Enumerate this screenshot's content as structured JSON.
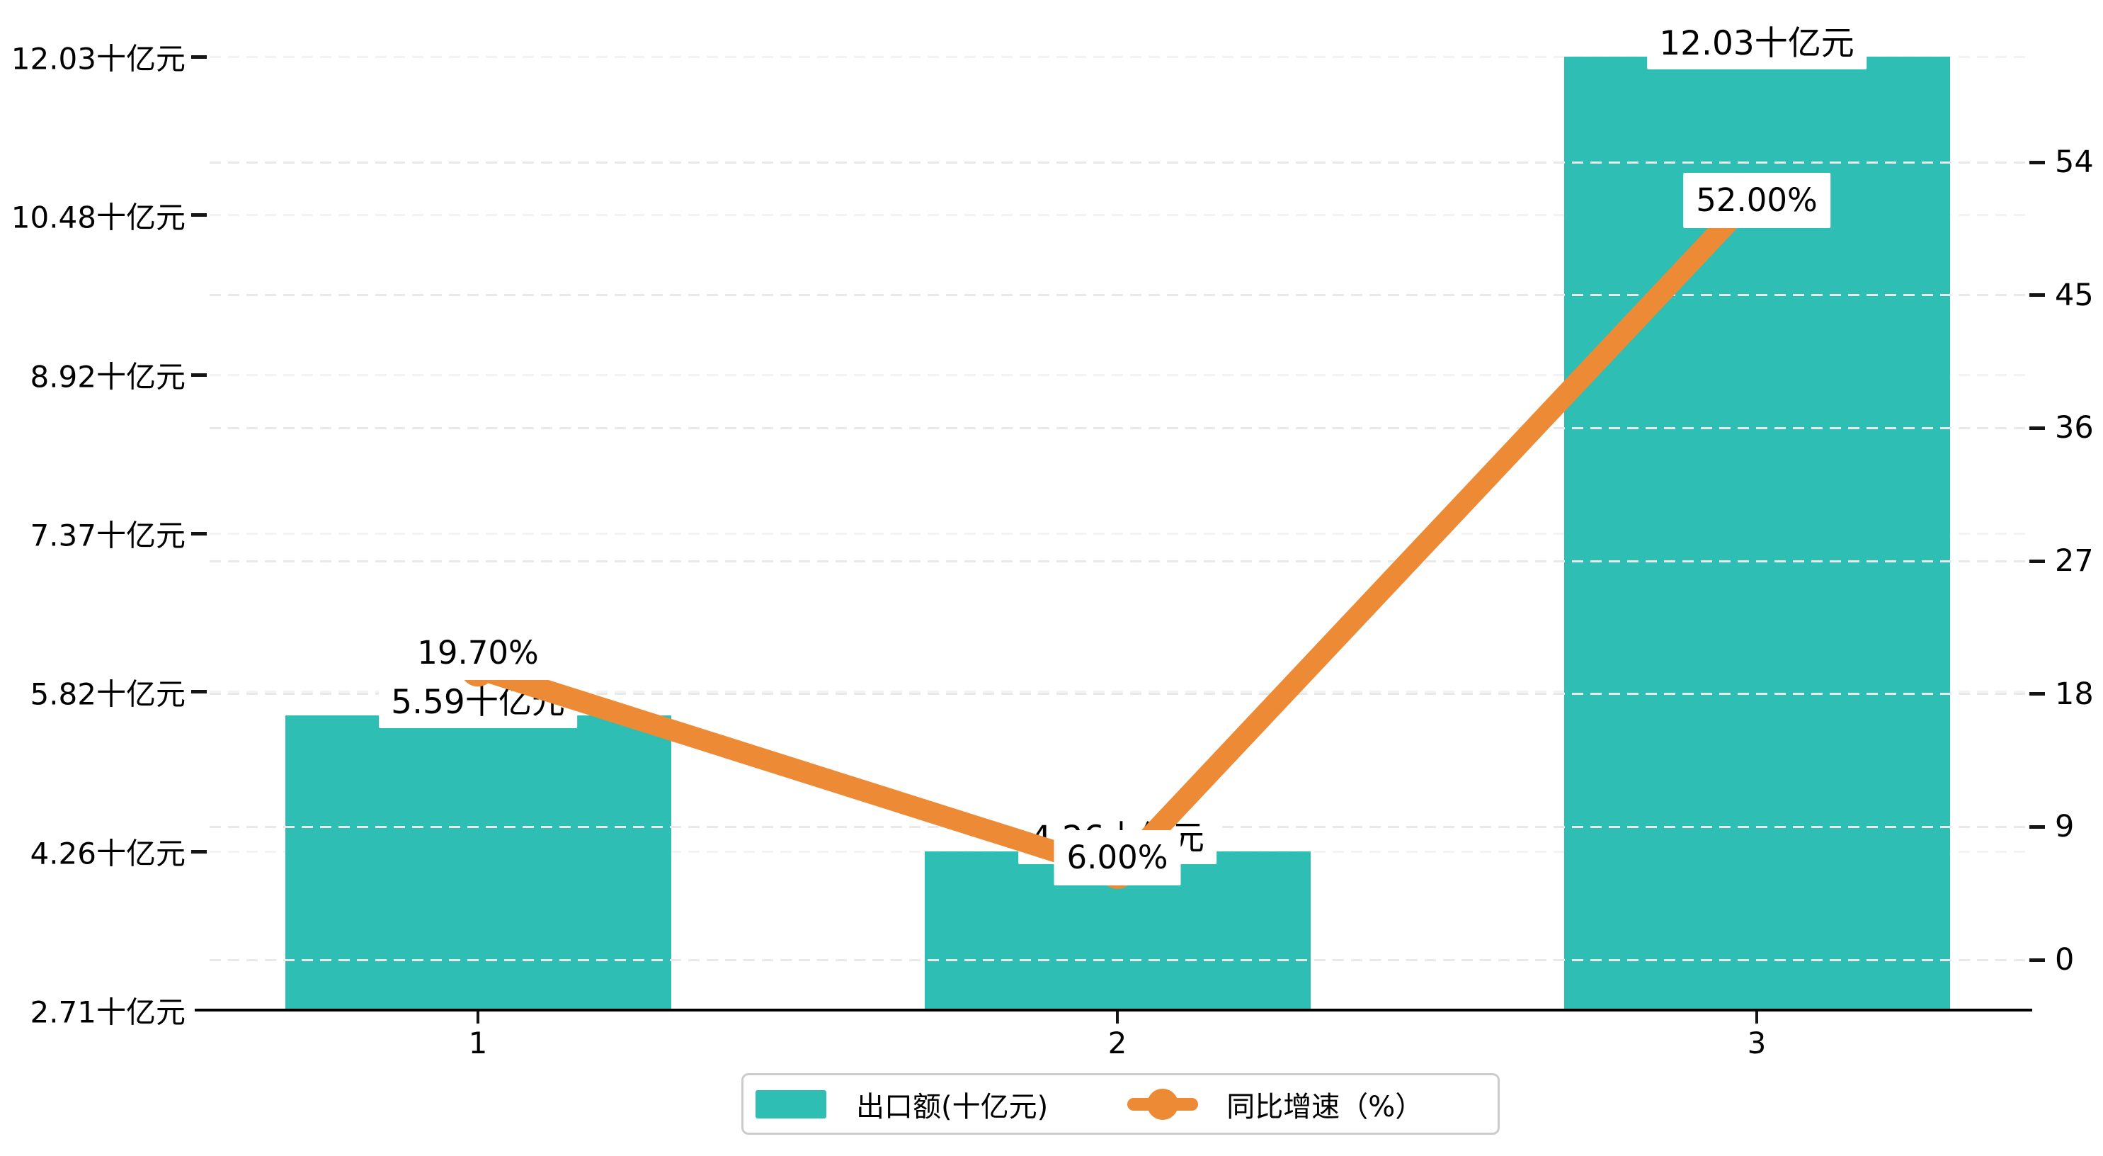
{
  "chart_data": {
    "type": "combo",
    "categories": [
      "1",
      "2",
      "3"
    ],
    "series": [
      {
        "name": "出口额(十亿元)",
        "type": "bar",
        "axis": "left",
        "color": "#2FBEB3",
        "values": [
          5.59,
          4.26,
          12.03
        ],
        "data_labels": [
          "5.59十亿元",
          "4.26十亿元",
          "12.03十亿元"
        ]
      },
      {
        "name": "同比增速（%）",
        "type": "line",
        "axis": "right",
        "color": "#ED8A35",
        "values": [
          19.7,
          6.0,
          52.0
        ],
        "data_labels": [
          "19.70%",
          "6.00%",
          "52.00%"
        ]
      }
    ],
    "left_axis": {
      "min": 2.71,
      "max": 12.03,
      "ticks": [
        2.71,
        4.26,
        5.82,
        7.37,
        8.92,
        10.48,
        12.03
      ],
      "tick_labels": [
        "2.71十亿元",
        "4.26十亿元",
        "5.82十亿元",
        "7.37十亿元",
        "8.92十亿元",
        "10.48十亿元",
        "12.03十亿元"
      ]
    },
    "right_axis": {
      "ticks": [
        0,
        9,
        18,
        27,
        36,
        45,
        54
      ],
      "tick_labels": [
        "0",
        "9",
        "18",
        "27",
        "36",
        "45",
        "54"
      ]
    },
    "x_axis": {
      "tick_labels": [
        "1",
        "2",
        "3"
      ]
    },
    "grid": {
      "dashed": true
    },
    "legend_position": "bottom"
  },
  "legend": {
    "items": [
      {
        "label": "出口额(十亿元)",
        "marker": "bar-swatch",
        "color": "#2FBEB3"
      },
      {
        "label": "同比增速（%）",
        "marker": "line-dot",
        "color": "#ED8A35"
      }
    ]
  },
  "colors": {
    "bar": "#2FBEB3",
    "line": "#ED8A35",
    "axis_line": "#000000",
    "tick": "#141414",
    "grid_under": "#f3f3f3",
    "grid_over": "#e9e9e9",
    "label_bg": "#ffffff",
    "legend_border": "#cccccc",
    "background": "#ffffff"
  }
}
